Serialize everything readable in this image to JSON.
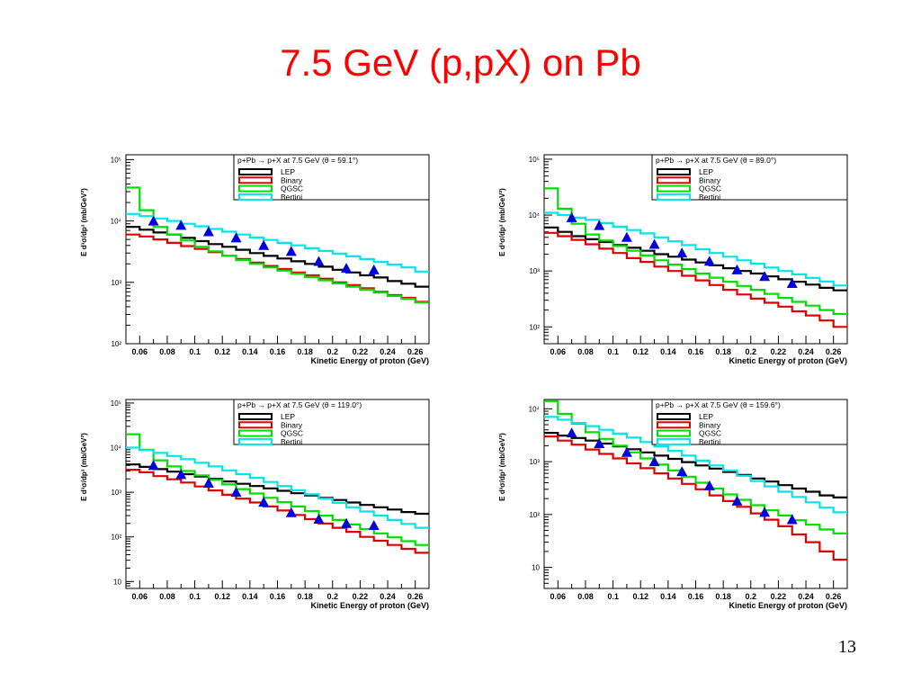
{
  "slide": {
    "title": "7.5 GeV (p,pX) on Pb",
    "page_number": "13"
  },
  "chart_data": [
    {
      "type": "line",
      "title": "p+Pb → p+X at 7.5 GeV (θ = 59.1°)",
      "xlabel": "Kinetic Energy of proton (GeV)",
      "ylabel": "E d³σ/dp³ (mb/GeV²)",
      "xlim": [
        0.05,
        0.27
      ],
      "ylim": [
        100,
        120000
      ],
      "yscale": "log",
      "x_ticks": [
        "0.06",
        "0.08",
        "0.1",
        "0.12",
        "0.14",
        "0.16",
        "0.18",
        "0.2",
        "0.22",
        "0.24",
        "0.26"
      ],
      "y_ticks": [
        {
          "value": 100000,
          "label": "10⁵"
        },
        {
          "value": 10000,
          "label": "10⁴"
        },
        {
          "value": 1000,
          "label": "10³"
        },
        {
          "value": 100,
          "label": "10²"
        }
      ],
      "legend_position": "top-right",
      "bin_edges": [
        0.05,
        0.06,
        0.07,
        0.08,
        0.09,
        0.1,
        0.11,
        0.12,
        0.13,
        0.14,
        0.15,
        0.16,
        0.17,
        0.18,
        0.19,
        0.2,
        0.21,
        0.22,
        0.23,
        0.24,
        0.25,
        0.26,
        0.27
      ],
      "series": [
        {
          "name": "LEP",
          "color": "#000000",
          "values": [
            8000,
            7200,
            6500,
            6000,
            5300,
            4700,
            4200,
            3800,
            3400,
            3000,
            2700,
            2450,
            2200,
            2000,
            1800,
            1600,
            1450,
            1300,
            1200,
            1050,
            950,
            850
          ]
        },
        {
          "name": "Binary",
          "color": "#dd0000",
          "values": [
            6000,
            5600,
            5000,
            4400,
            3900,
            3500,
            3100,
            2700,
            2400,
            2100,
            1850,
            1650,
            1450,
            1300,
            1150,
            1000,
            900,
            800,
            700,
            620,
            560,
            480
          ]
        },
        {
          "name": "QGSC",
          "color": "#00dd00",
          "values": [
            35000,
            15000,
            8000,
            6000,
            4800,
            3800,
            3200,
            2700,
            2300,
            2000,
            1750,
            1550,
            1380,
            1220,
            1080,
            960,
            850,
            760,
            680,
            600,
            540,
            470
          ]
        },
        {
          "name": "Bertini",
          "color": "#00e5e5",
          "values": [
            13000,
            12000,
            11000,
            10000,
            9000,
            8200,
            7400,
            6700,
            6000,
            5400,
            4900,
            4400,
            4000,
            3600,
            3250,
            2950,
            2650,
            2400,
            2150,
            1950,
            1750,
            1500
          ]
        }
      ],
      "data_points": {
        "x": [
          0.07,
          0.09,
          0.11,
          0.13,
          0.15,
          0.17,
          0.19,
          0.21,
          0.23
        ],
        "y": [
          10000,
          8500,
          6700,
          5300,
          4000,
          3200,
          2200,
          1700,
          1600
        ]
      }
    },
    {
      "type": "line",
      "title": "p+Pb → p+X at 7.5 GeV (θ = 89.0°)",
      "xlabel": "Kinetic Energy of proton (GeV)",
      "ylabel": "E d³σ/dp³ (mb/GeV²)",
      "xlim": [
        0.05,
        0.27
      ],
      "ylim": [
        50,
        120000
      ],
      "yscale": "log",
      "x_ticks": [
        "0.06",
        "0.08",
        "0.1",
        "0.12",
        "0.14",
        "0.16",
        "0.18",
        "0.2",
        "0.22",
        "0.24",
        "0.26"
      ],
      "y_ticks": [
        {
          "value": 100000,
          "label": "10⁵"
        },
        {
          "value": 10000,
          "label": "10⁴"
        },
        {
          "value": 1000,
          "label": "10³"
        },
        {
          "value": 100,
          "label": "10²"
        }
      ],
      "legend_position": "top-right",
      "bin_edges": [
        0.05,
        0.06,
        0.07,
        0.08,
        0.09,
        0.1,
        0.11,
        0.12,
        0.13,
        0.14,
        0.15,
        0.16,
        0.17,
        0.18,
        0.19,
        0.2,
        0.21,
        0.22,
        0.23,
        0.24,
        0.25,
        0.26,
        0.27
      ],
      "series": [
        {
          "name": "LEP",
          "color": "#000000",
          "values": [
            6000,
            5000,
            4200,
            3700,
            3300,
            2900,
            2600,
            2300,
            2000,
            1800,
            1600,
            1420,
            1260,
            1120,
            1000,
            900,
            800,
            710,
            640,
            570,
            500,
            450
          ]
        },
        {
          "name": "Binary",
          "color": "#dd0000",
          "values": [
            4800,
            4200,
            3600,
            3000,
            2500,
            2100,
            1700,
            1450,
            1200,
            1000,
            820,
            680,
            560,
            460,
            380,
            320,
            270,
            230,
            190,
            160,
            130,
            100
          ]
        },
        {
          "name": "QGSC",
          "color": "#00dd00",
          "values": [
            30000,
            13000,
            7000,
            4500,
            3500,
            2800,
            2300,
            1900,
            1550,
            1300,
            1080,
            900,
            760,
            640,
            540,
            460,
            390,
            330,
            280,
            240,
            200,
            170
          ]
        },
        {
          "name": "Bertini",
          "color": "#00e5e5",
          "values": [
            11000,
            10000,
            9000,
            8200,
            7200,
            6200,
            5400,
            4700,
            4000,
            3400,
            2900,
            2450,
            2100,
            1800,
            1550,
            1350,
            1150,
            1000,
            870,
            750,
            650,
            550
          ]
        }
      ],
      "data_points": {
        "x": [
          0.07,
          0.09,
          0.11,
          0.13,
          0.15,
          0.17,
          0.19,
          0.21,
          0.23
        ],
        "y": [
          9000,
          6500,
          4000,
          3000,
          2100,
          1500,
          1050,
          800,
          600
        ]
      }
    },
    {
      "type": "line",
      "title": "p+Pb → p+X at 7.5 GeV (θ = 119.0°)",
      "xlabel": "Kinetic Energy of proton (GeV)",
      "ylabel": "E d³σ/dp³ (mb/GeV²)",
      "xlim": [
        0.05,
        0.27
      ],
      "ylim": [
        7,
        120000
      ],
      "yscale": "log",
      "x_ticks": [
        "0.06",
        "0.08",
        "0.1",
        "0.12",
        "0.14",
        "0.16",
        "0.18",
        "0.2",
        "0.22",
        "0.24",
        "0.26"
      ],
      "y_ticks": [
        {
          "value": 100000,
          "label": "10⁵"
        },
        {
          "value": 10000,
          "label": "10⁴"
        },
        {
          "value": 1000,
          "label": "10³"
        },
        {
          "value": 100,
          "label": "10²"
        },
        {
          "value": 10,
          "label": "10"
        }
      ],
      "legend_position": "top-right",
      "bin_edges": [
        0.05,
        0.06,
        0.07,
        0.08,
        0.09,
        0.1,
        0.11,
        0.12,
        0.13,
        0.14,
        0.15,
        0.16,
        0.17,
        0.18,
        0.19,
        0.2,
        0.21,
        0.22,
        0.23,
        0.24,
        0.25,
        0.26,
        0.27
      ],
      "series": [
        {
          "name": "LEP",
          "color": "#000000",
          "values": [
            4200,
            3700,
            3300,
            2900,
            2550,
            2250,
            2000,
            1750,
            1550,
            1380,
            1220,
            1080,
            950,
            850,
            750,
            670,
            590,
            520,
            460,
            410,
            360,
            330
          ]
        },
        {
          "name": "Binary",
          "color": "#dd0000",
          "values": [
            3200,
            2800,
            2300,
            1950,
            1650,
            1350,
            1100,
            880,
            720,
            590,
            480,
            390,
            310,
            250,
            200,
            160,
            130,
            100,
            82,
            66,
            54,
            44
          ]
        },
        {
          "name": "QGSC",
          "color": "#00dd00",
          "values": [
            20000,
            9000,
            5200,
            3800,
            3000,
            2400,
            1900,
            1500,
            1180,
            940,
            750,
            600,
            480,
            380,
            300,
            240,
            190,
            150,
            120,
            98,
            80,
            66
          ]
        },
        {
          "name": "Bertini",
          "color": "#00e5e5",
          "values": [
            10000,
            8800,
            7600,
            6500,
            5500,
            4600,
            3800,
            3100,
            2550,
            2100,
            1700,
            1380,
            1110,
            900,
            720,
            580,
            460,
            370,
            300,
            240,
            195,
            160
          ]
        }
      ],
      "data_points": {
        "x": [
          0.07,
          0.09,
          0.11,
          0.13,
          0.15,
          0.17,
          0.19,
          0.21,
          0.23
        ],
        "y": [
          4000,
          2500,
          1600,
          1000,
          600,
          350,
          250,
          200,
          180
        ]
      }
    },
    {
      "type": "line",
      "title": "p+Pb → p+X at 7.5 GeV (θ = 159.6°)",
      "xlabel": "Kinetic Energy of proton (GeV)",
      "ylabel": "E d³σ/dp³ (mb/GeV²)",
      "xlim": [
        0.05,
        0.27
      ],
      "ylim": [
        4,
        15000
      ],
      "yscale": "log",
      "x_ticks": [
        "0.06",
        "0.08",
        "0.1",
        "0.12",
        "0.14",
        "0.16",
        "0.18",
        "0.2",
        "0.22",
        "0.24",
        "0.26"
      ],
      "y_ticks": [
        {
          "value": 10000,
          "label": "10⁴"
        },
        {
          "value": 1000,
          "label": "10³"
        },
        {
          "value": 100,
          "label": "10²"
        },
        {
          "value": 10,
          "label": "10"
        }
      ],
      "legend_position": "top-right",
      "bin_edges": [
        0.05,
        0.06,
        0.07,
        0.08,
        0.09,
        0.1,
        0.11,
        0.12,
        0.13,
        0.14,
        0.15,
        0.16,
        0.17,
        0.18,
        0.19,
        0.2,
        0.21,
        0.22,
        0.23,
        0.24,
        0.25,
        0.26,
        0.27
      ],
      "series": [
        {
          "name": "LEP",
          "color": "#000000",
          "values": [
            3500,
            3100,
            2800,
            2500,
            2200,
            1950,
            1720,
            1500,
            1300,
            1130,
            980,
            850,
            740,
            640,
            560,
            480,
            420,
            360,
            310,
            270,
            230,
            210
          ]
        },
        {
          "name": "Binary",
          "color": "#dd0000",
          "values": [
            3000,
            2500,
            2100,
            1700,
            1400,
            1150,
            930,
            750,
            600,
            480,
            380,
            300,
            230,
            180,
            140,
            105,
            80,
            60,
            42,
            30,
            20,
            14
          ]
        },
        {
          "name": "QGSC",
          "color": "#00dd00",
          "values": [
            14000,
            8000,
            5200,
            3600,
            2700,
            2000,
            1500,
            1150,
            880,
            680,
            520,
            400,
            310,
            240,
            190,
            150,
            120,
            96,
            78,
            64,
            52,
            44
          ]
        },
        {
          "name": "Bertini",
          "color": "#00e5e5",
          "values": [
            7000,
            6200,
            5400,
            4700,
            4000,
            3400,
            2850,
            2350,
            1950,
            1600,
            1300,
            1050,
            850,
            680,
            540,
            430,
            340,
            270,
            215,
            170,
            135,
            110
          ]
        }
      ],
      "data_points": {
        "x": [
          0.07,
          0.09,
          0.11,
          0.13,
          0.15,
          0.17,
          0.19,
          0.21,
          0.23
        ],
        "y": [
          3500,
          2200,
          1500,
          1000,
          650,
          350,
          180,
          110,
          80
        ]
      }
    }
  ]
}
